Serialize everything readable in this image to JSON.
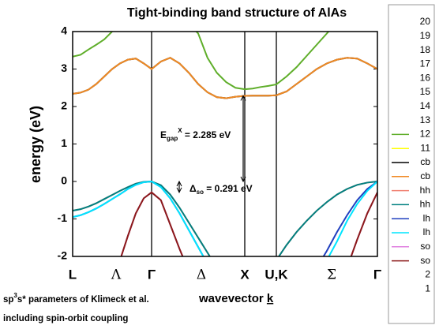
{
  "chart_data": {
    "type": "line",
    "title": "Tight-binding band structure of AlAs",
    "y_label": "energy (eV)",
    "x_label": [
      "wavevector ",
      "k"
    ],
    "footnotes": [
      [
        "sp",
        "3",
        "s* parameters of Klimeck et al."
      ],
      [
        "including spin-orbit coupling"
      ]
    ],
    "annotations": [
      {
        "parts": [
          "E",
          "gap",
          "X",
          " = 2.285 eV"
        ],
        "from": 0,
        "to": 2.285
      },
      {
        "parts": [
          "Δ",
          "so",
          " = 0.291 eV"
        ],
        "from": -0.291,
        "to": 0
      }
    ],
    "xlim": [
      0,
      3.86
    ],
    "xticks": [
      {
        "value": 0,
        "label": "L"
      },
      {
        "value": 1,
        "label": "Γ"
      },
      {
        "value": 2.18,
        "label": "X"
      },
      {
        "value": 2.58,
        "label": "U,K"
      },
      {
        "value": 3.86,
        "label": "Γ"
      }
    ],
    "direction_labels": [
      {
        "value": 0.55,
        "label": "Λ"
      },
      {
        "value": 1.63,
        "label": "Δ"
      },
      {
        "value": 3.28,
        "label": "Σ"
      }
    ],
    "ylim": [
      -2,
      4
    ],
    "yticks": [
      -2,
      -1,
      0,
      1,
      2,
      3,
      4
    ],
    "x": [
      0,
      0.1,
      0.2,
      0.3,
      0.4,
      0.5,
      0.6,
      0.7,
      0.8,
      0.9,
      1.0,
      1.118,
      1.236,
      1.354,
      1.472,
      1.59,
      1.708,
      1.826,
      1.944,
      2.062,
      2.18,
      2.28,
      2.38,
      2.48,
      2.58,
      2.708,
      2.836,
      2.964,
      3.092,
      3.22,
      3.348,
      3.476,
      3.604,
      3.732,
      3.86
    ],
    "series": [
      {
        "name": "20",
        "values": [
          null,
          null,
          null,
          null,
          null,
          null,
          null,
          null,
          null,
          null,
          null,
          null,
          null,
          null,
          null,
          null,
          null,
          null,
          null,
          null,
          null,
          null,
          null,
          null,
          null,
          null,
          null,
          null,
          null,
          null,
          null,
          null,
          null,
          null,
          null
        ]
      },
      {
        "name": "19",
        "values": [
          null,
          null,
          null,
          null,
          null,
          null,
          null,
          null,
          null,
          null,
          null,
          null,
          null,
          null,
          null,
          null,
          null,
          null,
          null,
          null,
          null,
          null,
          null,
          null,
          null,
          null,
          null,
          null,
          null,
          null,
          null,
          null,
          null,
          null,
          null
        ]
      },
      {
        "name": "18",
        "values": [
          null,
          null,
          null,
          null,
          null,
          null,
          null,
          null,
          null,
          null,
          null,
          null,
          null,
          null,
          null,
          null,
          null,
          null,
          null,
          null,
          null,
          null,
          null,
          null,
          null,
          null,
          null,
          null,
          null,
          null,
          null,
          null,
          null,
          null,
          null
        ]
      },
      {
        "name": "17",
        "values": [
          null,
          null,
          null,
          null,
          null,
          null,
          null,
          null,
          null,
          null,
          null,
          null,
          null,
          null,
          null,
          null,
          null,
          null,
          null,
          null,
          null,
          null,
          null,
          null,
          null,
          null,
          null,
          null,
          null,
          null,
          null,
          null,
          null,
          null,
          null
        ]
      },
      {
        "name": "16",
        "values": [
          null,
          null,
          null,
          null,
          null,
          null,
          null,
          null,
          null,
          null,
          null,
          null,
          null,
          null,
          null,
          null,
          null,
          null,
          null,
          null,
          null,
          null,
          null,
          null,
          null,
          null,
          null,
          null,
          null,
          null,
          null,
          null,
          null,
          null,
          null
        ]
      },
      {
        "name": "15",
        "values": [
          null,
          null,
          null,
          null,
          null,
          null,
          null,
          null,
          null,
          null,
          null,
          null,
          null,
          null,
          null,
          null,
          null,
          null,
          null,
          null,
          null,
          null,
          null,
          null,
          null,
          null,
          null,
          null,
          null,
          null,
          null,
          null,
          null,
          null,
          null
        ]
      },
      {
        "name": "14",
        "values": [
          null,
          null,
          null,
          null,
          null,
          null,
          null,
          null,
          null,
          null,
          null,
          null,
          null,
          null,
          null,
          null,
          null,
          null,
          null,
          null,
          null,
          null,
          null,
          null,
          null,
          null,
          null,
          null,
          null,
          null,
          null,
          null,
          null,
          null,
          null
        ]
      },
      {
        "name": "13",
        "values": [
          null,
          null,
          null,
          null,
          null,
          null,
          null,
          null,
          null,
          null,
          null,
          null,
          null,
          null,
          null,
          null,
          null,
          null,
          null,
          null,
          null,
          null,
          null,
          null,
          null,
          null,
          null,
          null,
          null,
          null,
          null,
          null,
          null,
          null,
          null
        ]
      },
      {
        "name": "12",
        "color": "#5fae2a",
        "values": [
          3.33,
          3.38,
          3.52,
          3.65,
          3.79,
          4.0,
          4.2,
          null,
          null,
          null,
          null,
          null,
          null,
          null,
          4.2,
          3.95,
          3.3,
          2.9,
          2.65,
          2.5,
          2.46,
          2.48,
          2.52,
          2.55,
          2.59,
          2.8,
          3.05,
          3.35,
          3.65,
          3.95,
          4.25,
          null,
          null,
          null,
          null
        ]
      },
      {
        "name": "11",
        "color": "#ffff00",
        "values": [
          null,
          null,
          null,
          null,
          null,
          null,
          null,
          null,
          null,
          null,
          null,
          null,
          null,
          null,
          null,
          null,
          null,
          null,
          null,
          null,
          null,
          null,
          null,
          null,
          null,
          null,
          null,
          null,
          null,
          null,
          null,
          null,
          null,
          null,
          null
        ]
      },
      {
        "name": "cb",
        "color": "#000000",
        "values": [
          2.34,
          2.37,
          2.45,
          2.6,
          2.8,
          3.0,
          3.15,
          3.25,
          3.28,
          3.15,
          3.0,
          3.2,
          3.3,
          3.15,
          2.9,
          2.6,
          2.38,
          2.25,
          2.22,
          2.26,
          2.285,
          2.29,
          2.29,
          2.29,
          2.3,
          2.4,
          2.6,
          2.8,
          3.0,
          3.15,
          3.25,
          3.3,
          3.28,
          3.15,
          3.0
        ]
      },
      {
        "name": "cb",
        "color": "#f08a24",
        "values": [
          2.34,
          2.37,
          2.45,
          2.6,
          2.8,
          3.0,
          3.15,
          3.25,
          3.28,
          3.15,
          3.0,
          3.2,
          3.3,
          3.15,
          2.9,
          2.6,
          2.38,
          2.25,
          2.22,
          2.26,
          2.285,
          2.29,
          2.29,
          2.29,
          2.3,
          2.4,
          2.6,
          2.8,
          3.0,
          3.15,
          3.25,
          3.3,
          3.28,
          3.15,
          3.0
        ]
      },
      {
        "name": "hh",
        "color": "#f08070",
        "values": [
          -0.78,
          -0.74,
          -0.67,
          -0.58,
          -0.47,
          -0.36,
          -0.25,
          -0.15,
          -0.06,
          -0.01,
          0,
          -0.1,
          -0.35,
          -0.7,
          -1.1,
          -1.5,
          -1.9,
          -2.3,
          null,
          null,
          null,
          null,
          null,
          null,
          -2.1,
          -1.7,
          -1.35,
          -1.05,
          -0.78,
          -0.55,
          -0.35,
          -0.2,
          -0.09,
          -0.03,
          0
        ]
      },
      {
        "name": "hh",
        "color": "#008080",
        "values": [
          -0.78,
          -0.74,
          -0.67,
          -0.58,
          -0.47,
          -0.36,
          -0.25,
          -0.15,
          -0.06,
          -0.01,
          0,
          -0.1,
          -0.35,
          -0.7,
          -1.1,
          -1.5,
          -1.9,
          -2.3,
          null,
          null,
          null,
          null,
          null,
          null,
          -2.1,
          -1.7,
          -1.35,
          -1.05,
          -0.78,
          -0.55,
          -0.35,
          -0.2,
          -0.09,
          -0.03,
          0
        ]
      },
      {
        "name": "lh",
        "color": "#1f3fbf",
        "values": [
          -0.95,
          -0.9,
          -0.82,
          -0.72,
          -0.6,
          -0.47,
          -0.34,
          -0.2,
          -0.09,
          -0.02,
          0,
          -0.15,
          -0.45,
          -0.85,
          -1.3,
          -1.75,
          -2.2,
          null,
          null,
          null,
          null,
          null,
          null,
          null,
          null,
          null,
          null,
          null,
          -2.3,
          -1.85,
          -1.35,
          -0.9,
          -0.5,
          -0.2,
          0
        ]
      },
      {
        "name": "lh",
        "color": "#00e5ff",
        "values": [
          -0.95,
          -0.9,
          -0.82,
          -0.72,
          -0.6,
          -0.47,
          -0.34,
          -0.2,
          -0.09,
          -0.02,
          0,
          -0.15,
          -0.45,
          -0.85,
          -1.3,
          -1.75,
          -2.2,
          null,
          null,
          null,
          null,
          null,
          null,
          null,
          null,
          null,
          null,
          null,
          null,
          -2.1,
          -1.6,
          -1.05,
          -0.6,
          -0.25,
          0
        ]
      },
      {
        "name": "so",
        "color": "#e080e0",
        "values": [
          null,
          null,
          null,
          null,
          null,
          null,
          -2.1,
          -1.45,
          -0.85,
          -0.45,
          -0.291,
          -0.5,
          -1.15,
          -1.8,
          -2.4,
          null,
          null,
          null,
          null,
          null,
          null,
          null,
          null,
          null,
          null,
          null,
          null,
          null,
          null,
          null,
          null,
          -2.3,
          -1.55,
          -0.85,
          -0.291
        ]
      },
      {
        "name": "so",
        "color": "#8b1a1a",
        "values": [
          null,
          null,
          null,
          null,
          null,
          null,
          -2.1,
          -1.45,
          -0.85,
          -0.45,
          -0.291,
          -0.5,
          -1.15,
          -1.8,
          -2.4,
          null,
          null,
          null,
          null,
          null,
          null,
          null,
          null,
          null,
          null,
          null,
          null,
          null,
          null,
          null,
          null,
          -2.3,
          -1.55,
          -0.85,
          -0.291
        ]
      },
      {
        "name": "2",
        "values": [
          null,
          null,
          null,
          null,
          null,
          null,
          null,
          null,
          null,
          null,
          null,
          null,
          null,
          null,
          null,
          null,
          null,
          null,
          null,
          null,
          null,
          null,
          null,
          null,
          null,
          null,
          null,
          null,
          null,
          null,
          null,
          null,
          null,
          null,
          null
        ]
      },
      {
        "name": "1",
        "values": [
          null,
          null,
          null,
          null,
          null,
          null,
          null,
          null,
          null,
          null,
          null,
          null,
          null,
          null,
          null,
          null,
          null,
          null,
          null,
          null,
          null,
          null,
          null,
          null,
          null,
          null,
          null,
          null,
          null,
          null,
          null,
          null,
          null,
          null,
          null
        ]
      }
    ]
  }
}
